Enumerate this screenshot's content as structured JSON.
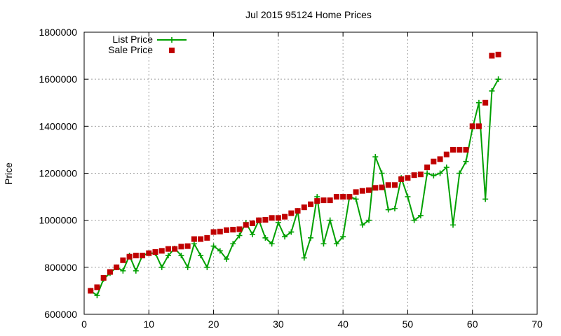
{
  "chart_data": {
    "type": "line",
    "title": "Jul 2015 95124 Home Prices",
    "xlabel": "",
    "ylabel": "Price",
    "xlim": [
      0,
      70
    ],
    "ylim": [
      600000,
      1800000
    ],
    "x_ticks": [
      0,
      10,
      20,
      30,
      40,
      50,
      60,
      70
    ],
    "y_ticks": [
      600000,
      800000,
      1000000,
      1200000,
      1400000,
      1600000,
      1800000
    ],
    "grid": true,
    "legend_position": "top-left",
    "series": [
      {
        "name": "List Price",
        "style": "line-with-plus-markers",
        "color": "#00a000",
        "points": [
          [
            1,
            700000
          ],
          [
            2,
            680000
          ],
          [
            3,
            750000
          ],
          [
            4,
            775000
          ],
          [
            5,
            800000
          ],
          [
            6,
            785000
          ],
          [
            7,
            850000
          ],
          [
            8,
            785000
          ],
          [
            9,
            850000
          ],
          [
            10,
            860000
          ],
          [
            11,
            860000
          ],
          [
            12,
            800000
          ],
          [
            13,
            850000
          ],
          [
            14,
            880000
          ],
          [
            15,
            850000
          ],
          [
            16,
            800000
          ],
          [
            17,
            900000
          ],
          [
            18,
            850000
          ],
          [
            19,
            800000
          ],
          [
            20,
            890000
          ],
          [
            21,
            870000
          ],
          [
            22,
            835000
          ],
          [
            23,
            900000
          ],
          [
            24,
            935000
          ],
          [
            25,
            990000
          ],
          [
            26,
            940000
          ],
          [
            27,
            1000000
          ],
          [
            28,
            925000
          ],
          [
            29,
            900000
          ],
          [
            30,
            990000
          ],
          [
            31,
            930000
          ],
          [
            32,
            950000
          ],
          [
            33,
            1040000
          ],
          [
            34,
            840000
          ],
          [
            35,
            925000
          ],
          [
            36,
            1100000
          ],
          [
            37,
            900000
          ],
          [
            38,
            1000000
          ],
          [
            39,
            900000
          ],
          [
            40,
            930000
          ],
          [
            41,
            1100000
          ],
          [
            42,
            1090000
          ],
          [
            43,
            980000
          ],
          [
            44,
            1000000
          ],
          [
            45,
            1270000
          ],
          [
            46,
            1200000
          ],
          [
            47,
            1045000
          ],
          [
            48,
            1050000
          ],
          [
            49,
            1180000
          ],
          [
            50,
            1100000
          ],
          [
            51,
            1000000
          ],
          [
            52,
            1020000
          ],
          [
            53,
            1200000
          ],
          [
            54,
            1190000
          ],
          [
            55,
            1200000
          ],
          [
            56,
            1225000
          ],
          [
            57,
            980000
          ],
          [
            58,
            1200000
          ],
          [
            59,
            1250000
          ],
          [
            60,
            1390000
          ],
          [
            61,
            1500000
          ],
          [
            62,
            1090000
          ],
          [
            63,
            1550000
          ],
          [
            64,
            1600000
          ]
        ]
      },
      {
        "name": "Sale Price",
        "style": "square-markers",
        "color": "#c00000",
        "points": [
          [
            1,
            700000
          ],
          [
            2,
            715000
          ],
          [
            3,
            755000
          ],
          [
            4,
            780000
          ],
          [
            5,
            800000
          ],
          [
            6,
            830000
          ],
          [
            7,
            845000
          ],
          [
            8,
            850000
          ],
          [
            9,
            850000
          ],
          [
            10,
            860000
          ],
          [
            11,
            865000
          ],
          [
            12,
            870000
          ],
          [
            13,
            878000
          ],
          [
            14,
            878000
          ],
          [
            15,
            888000
          ],
          [
            16,
            890000
          ],
          [
            17,
            920000
          ],
          [
            18,
            920000
          ],
          [
            19,
            925000
          ],
          [
            20,
            950000
          ],
          [
            21,
            952000
          ],
          [
            22,
            958000
          ],
          [
            23,
            960000
          ],
          [
            24,
            962000
          ],
          [
            25,
            980000
          ],
          [
            26,
            987000
          ],
          [
            27,
            1000000
          ],
          [
            28,
            1002000
          ],
          [
            29,
            1010000
          ],
          [
            30,
            1010000
          ],
          [
            31,
            1015000
          ],
          [
            32,
            1030000
          ],
          [
            33,
            1040000
          ],
          [
            34,
            1055000
          ],
          [
            35,
            1068000
          ],
          [
            36,
            1082000
          ],
          [
            37,
            1085000
          ],
          [
            38,
            1085000
          ],
          [
            39,
            1100000
          ],
          [
            40,
            1100000
          ],
          [
            41,
            1100000
          ],
          [
            42,
            1120000
          ],
          [
            43,
            1125000
          ],
          [
            44,
            1128000
          ],
          [
            45,
            1138000
          ],
          [
            46,
            1140000
          ],
          [
            47,
            1150000
          ],
          [
            48,
            1150000
          ],
          [
            49,
            1175000
          ],
          [
            50,
            1180000
          ],
          [
            51,
            1192000
          ],
          [
            52,
            1195000
          ],
          [
            53,
            1225000
          ],
          [
            54,
            1250000
          ],
          [
            55,
            1260000
          ],
          [
            56,
            1280000
          ],
          [
            57,
            1300000
          ],
          [
            58,
            1300000
          ],
          [
            59,
            1300000
          ],
          [
            60,
            1400000
          ],
          [
            61,
            1400000
          ],
          [
            62,
            1500000
          ],
          [
            63,
            1700000
          ],
          [
            64,
            1705000
          ]
        ]
      }
    ]
  }
}
